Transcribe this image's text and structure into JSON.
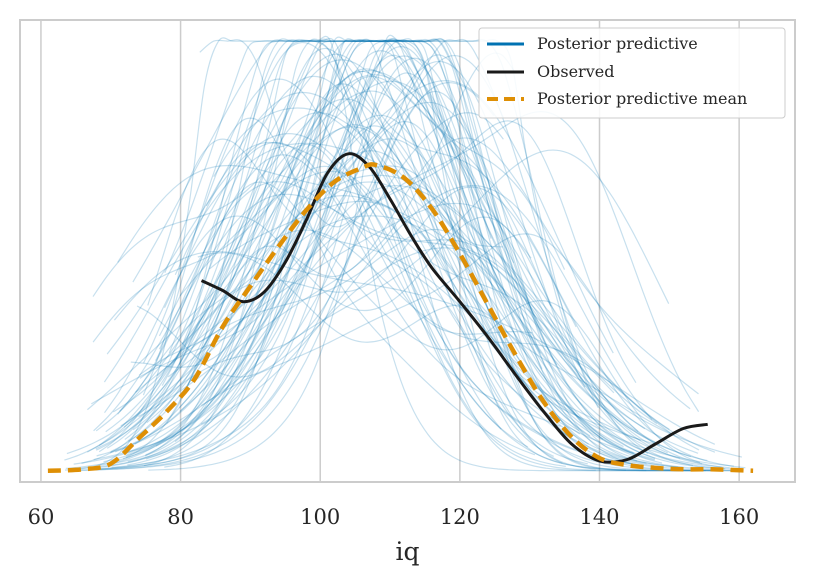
{
  "chart_data": {
    "type": "line",
    "title": "",
    "xlabel": "iq",
    "ylabel": "",
    "xlim": [
      57,
      168
    ],
    "ylim": [
      -0.0008,
      0.032
    ],
    "xticks": [
      60,
      80,
      100,
      120,
      140,
      160
    ],
    "xtick_labels": [
      "60",
      "80",
      "100",
      "120",
      "140",
      "160"
    ],
    "grid": "vertical",
    "legend_position": "top-right",
    "legend": [
      "Posterior predictive",
      "Observed",
      "Posterior predictive mean"
    ],
    "colors": {
      "posterior_predictive": "#0072b2",
      "observed": "#1a1a1a",
      "mean": "#de8f05",
      "grid": "#cccccc",
      "frame": "#cccccc"
    },
    "series": [
      {
        "name": "Observed",
        "x": [
          83,
          86,
          89,
          92,
          95,
          98,
          101,
          104,
          107,
          110,
          113,
          116,
          120,
          124,
          128,
          132,
          136,
          140,
          144,
          148,
          152,
          155.5
        ],
        "y": [
          0.0135,
          0.0128,
          0.012,
          0.0127,
          0.0148,
          0.0178,
          0.0211,
          0.0225,
          0.0216,
          0.0193,
          0.0167,
          0.0144,
          0.012,
          0.0095,
          0.0068,
          0.0042,
          0.0019,
          0.0007,
          0.0008,
          0.0019,
          0.003,
          0.0033
        ]
      },
      {
        "name": "Posterior predictive mean",
        "x": [
          61,
          66,
          70,
          74,
          78,
          82,
          86,
          90,
          94,
          98,
          102,
          106,
          108,
          112,
          116,
          120,
          124,
          128,
          132,
          136,
          140,
          144,
          148,
          152,
          156,
          162
        ],
        "y": [
          0.0,
          0.0001,
          0.0005,
          0.0023,
          0.0042,
          0.0065,
          0.0102,
          0.0131,
          0.0159,
          0.0185,
          0.0205,
          0.0215,
          0.0217,
          0.0208,
          0.0186,
          0.0154,
          0.0118,
          0.0082,
          0.0049,
          0.0024,
          0.0009,
          0.0004,
          0.0002,
          0.0001,
          0.0001,
          0.0
        ]
      }
    ]
  }
}
